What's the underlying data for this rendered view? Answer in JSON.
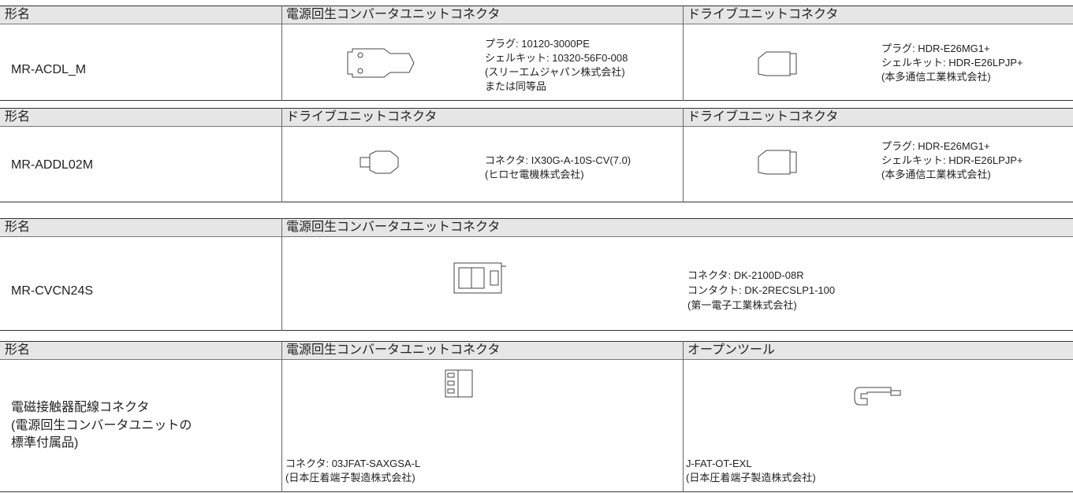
{
  "tables": [
    {
      "header": [
        "形名",
        "電源回生コンバータユニットコネクタ",
        "ドライブユニットコネクタ"
      ],
      "name": [
        "MR-ACDL_M"
      ],
      "cells": [
        [
          "プラグ: 10120-3000PE",
          "シェルキット: 10320-56F0-008",
          "(スリーエムジャパン株式会社)",
          "または同等品"
        ],
        [
          "プラグ: HDR-E26MG1+",
          "シェルキット: HDR-E26LPJP+",
          "(本多通信工業株式会社)"
        ]
      ]
    },
    {
      "header": [
        "形名",
        "ドライブユニットコネクタ",
        "ドライブユニットコネクタ"
      ],
      "name": [
        "MR-ADDL02M"
      ],
      "cells": [
        [
          "コネクタ: IX30G-A-10S-CV(7.0)",
          "(ヒロセ電機株式会社)"
        ],
        [
          "プラグ: HDR-E26MG1+",
          "シェルキット: HDR-E26LPJP+",
          "(本多通信工業株式会社)"
        ]
      ]
    },
    {
      "header": [
        "形名",
        "電源回生コンバータユニットコネクタ"
      ],
      "name": [
        "MR-CVCN24S"
      ],
      "cells": [
        [
          "コネクタ: DK-2100D-08R",
          "コンタクト: DK-2RECSLP1-100",
          "(第一電子工業株式会社)"
        ]
      ]
    },
    {
      "header": [
        "形名",
        "電源回生コンバータユニットコネクタ",
        "オープンツール"
      ],
      "name": [
        "電磁接触器配線コネクタ",
        "(電源回生コンバータユニットの",
        "標準付属品)"
      ],
      "cells": [
        [
          "コネクタ: 03JFAT-SAXGSA-L",
          "(日本圧着端子製造株式会社)"
        ],
        [
          "J-FAT-OT-EXL",
          "(日本圧着端子製造株式会社)"
        ]
      ]
    }
  ]
}
